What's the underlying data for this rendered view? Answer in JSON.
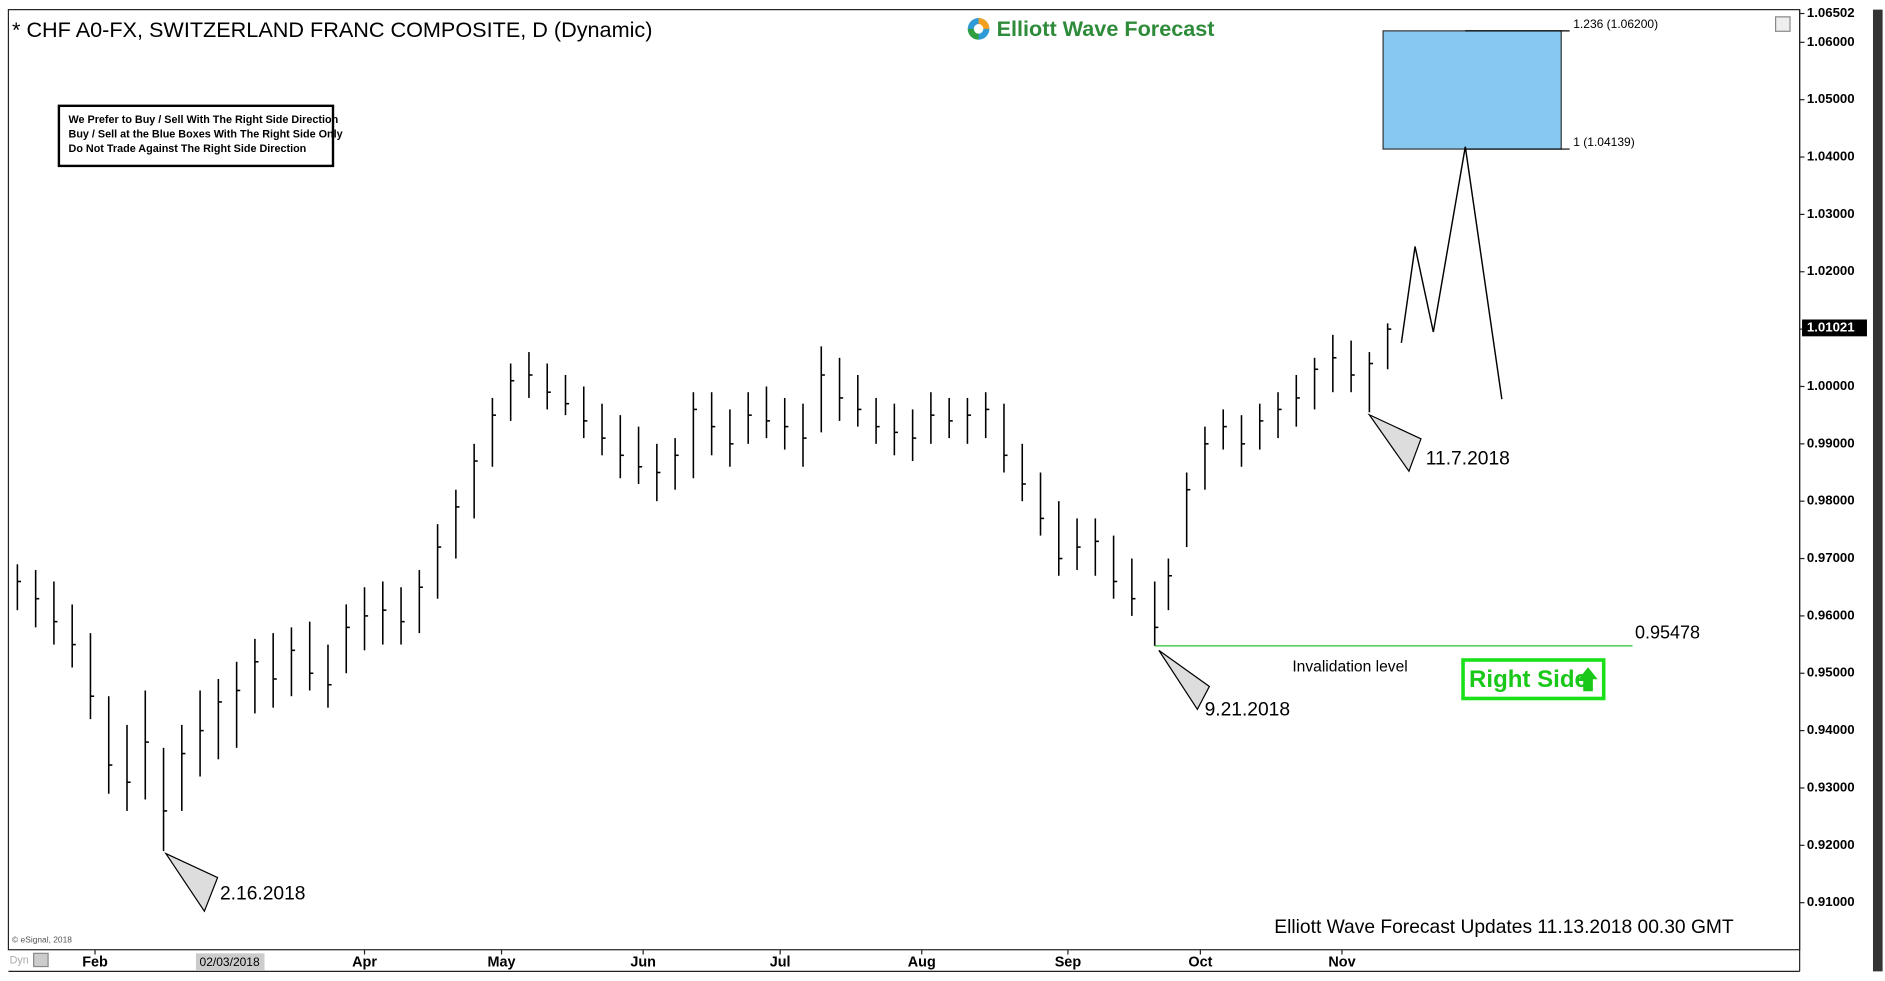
{
  "chart_data": {
    "type": "ohlc",
    "title": "* CHF A0-FX, SWITZERLAND FRANC COMPOSITE, D (Dynamic)",
    "brand": "Elliott Wave Forecast",
    "note_lines": [
      "We Prefer to Buy / Sell With The Right Side Direction",
      "Buy / Sell at the Blue Boxes With The Right Side Only",
      "Do Not Trade Against The Right Side Direction"
    ],
    "footer": "Elliott Wave Forecast Updates 11.13.2018 00.30 GMT",
    "copyright": "© eSignal, 2018",
    "corner_label": "Dyn",
    "cursor_label": "02/03/2018",
    "color": "#000000",
    "x": [
      15,
      19,
      23,
      27,
      31,
      35,
      39,
      43,
      47,
      51,
      55,
      59,
      63,
      67,
      71,
      75,
      79,
      83,
      87,
      91,
      95,
      99,
      103,
      107,
      111,
      115,
      119,
      123,
      127,
      131,
      135,
      139,
      143,
      147,
      151,
      155,
      159,
      163,
      167,
      171,
      175,
      179,
      183,
      187,
      191,
      195,
      199,
      203,
      207,
      211,
      215,
      219,
      223,
      227,
      231,
      235,
      239,
      243,
      247,
      251,
      255,
      259,
      264,
      267,
      271,
      275,
      279,
      283,
      287,
      291,
      295,
      299,
      303,
      307,
      311,
      315
    ],
    "low": [
      0.961,
      0.958,
      0.955,
      0.951,
      0.942,
      0.929,
      0.926,
      0.928,
      0.919,
      0.926,
      0.932,
      0.935,
      0.937,
      0.943,
      0.944,
      0.946,
      0.947,
      0.944,
      0.95,
      0.954,
      0.955,
      0.955,
      0.957,
      0.963,
      0.97,
      0.977,
      0.986,
      0.994,
      0.998,
      0.996,
      0.995,
      0.991,
      0.988,
      0.984,
      0.983,
      0.98,
      0.982,
      0.984,
      0.988,
      0.986,
      0.99,
      0.991,
      0.989,
      0.986,
      0.992,
      0.994,
      0.993,
      0.99,
      0.988,
      0.987,
      0.99,
      0.991,
      0.99,
      0.991,
      0.985,
      0.98,
      0.974,
      0.967,
      0.968,
      0.967,
      0.963,
      0.96,
      0.9548,
      0.961,
      0.972,
      0.982,
      0.989,
      0.986,
      0.989,
      0.991,
      0.993,
      0.996,
      0.999,
      0.999,
      0.9955,
      1.003
    ],
    "high": [
      0.969,
      0.968,
      0.966,
      0.962,
      0.957,
      0.946,
      0.941,
      0.947,
      0.937,
      0.941,
      0.947,
      0.949,
      0.952,
      0.956,
      0.957,
      0.958,
      0.959,
      0.955,
      0.962,
      0.965,
      0.966,
      0.965,
      0.968,
      0.976,
      0.982,
      0.99,
      0.998,
      1.004,
      1.006,
      1.004,
      1.002,
      1.0,
      0.997,
      0.995,
      0.993,
      0.99,
      0.991,
      0.999,
      0.999,
      0.996,
      0.999,
      1.0,
      0.998,
      0.997,
      1.007,
      1.005,
      1.002,
      0.998,
      0.997,
      0.996,
      0.999,
      0.998,
      0.998,
      0.999,
      0.997,
      0.99,
      0.985,
      0.98,
      0.977,
      0.977,
      0.974,
      0.97,
      0.966,
      0.97,
      0.985,
      0.993,
      0.996,
      0.995,
      0.997,
      0.999,
      1.002,
      1.005,
      1.009,
      1.008,
      1.006,
      1.011
    ],
    "close": [
      0.966,
      0.963,
      0.959,
      0.955,
      0.946,
      0.934,
      0.931,
      0.938,
      0.926,
      0.936,
      0.94,
      0.945,
      0.947,
      0.952,
      0.949,
      0.954,
      0.95,
      0.948,
      0.958,
      0.96,
      0.961,
      0.959,
      0.965,
      0.972,
      0.979,
      0.987,
      0.995,
      1.001,
      1.002,
      0.999,
      0.997,
      0.994,
      0.991,
      0.988,
      0.986,
      0.985,
      0.988,
      0.996,
      0.993,
      0.99,
      0.995,
      0.994,
      0.993,
      0.991,
      1.002,
      0.998,
      0.996,
      0.993,
      0.992,
      0.991,
      0.995,
      0.994,
      0.995,
      0.996,
      0.988,
      0.983,
      0.977,
      0.97,
      0.972,
      0.973,
      0.966,
      0.963,
      0.958,
      0.967,
      0.982,
      0.99,
      0.993,
      0.99,
      0.994,
      0.996,
      0.998,
      1.003,
      1.005,
      1.002,
      1.004,
      1.01
    ],
    "last_price": 1.01021,
    "projection": {
      "x": [
        318,
        321,
        325,
        332,
        340
      ],
      "values": [
        1.0076,
        1.0244,
        1.0095,
        1.0418,
        0.9978
      ]
    },
    "target_box": {
      "x": [
        314,
        353
      ],
      "low": 1.04139,
      "high": 1.062,
      "low_label": "1 (1.04139)",
      "high_label": "1.236 (1.06200)"
    },
    "invalidation": {
      "value": 0.95478,
      "label": "Invalidation level"
    },
    "right_side": "Right Side",
    "pivots": [
      "2.16.2018",
      "9.21.2018",
      "11.7.2018"
    ],
    "xlim": [
      13.3,
      405.2
    ],
    "xticks": [
      {
        "value": 32,
        "label": "Feb"
      },
      {
        "value": 91,
        "label": "Apr"
      },
      {
        "value": 121,
        "label": "May"
      },
      {
        "value": 152,
        "label": "Jun"
      },
      {
        "value": 182,
        "label": "Jul"
      },
      {
        "value": 213,
        "label": "Aug"
      },
      {
        "value": 245,
        "label": "Sep"
      },
      {
        "value": 274,
        "label": "Oct"
      },
      {
        "value": 305,
        "label": "Nov"
      }
    ],
    "ylim": [
      0.9018,
      1.0657
    ],
    "yticks": [
      {
        "value": 0.91,
        "label": "0.91000"
      },
      {
        "value": 0.92,
        "label": "0.92000"
      },
      {
        "value": 0.93,
        "label": "0.93000"
      },
      {
        "value": 0.94,
        "label": "0.94000"
      },
      {
        "value": 0.95,
        "label": "0.95000"
      },
      {
        "value": 0.96,
        "label": "0.96000"
      },
      {
        "value": 0.97,
        "label": "0.97000"
      },
      {
        "value": 0.98,
        "label": "0.98000"
      },
      {
        "value": 0.99,
        "label": "0.99000"
      },
      {
        "value": 1.0,
        "label": "1.00000"
      },
      {
        "value": 1.01,
        "label": "1.01000"
      },
      {
        "value": 1.02,
        "label": "1.02000"
      },
      {
        "value": 1.03,
        "label": "1.03000"
      },
      {
        "value": 1.04,
        "label": "1.04000"
      },
      {
        "value": 1.05,
        "label": "1.05000"
      },
      {
        "value": 1.06,
        "label": "1.06000"
      },
      1.06502
    ]
  }
}
